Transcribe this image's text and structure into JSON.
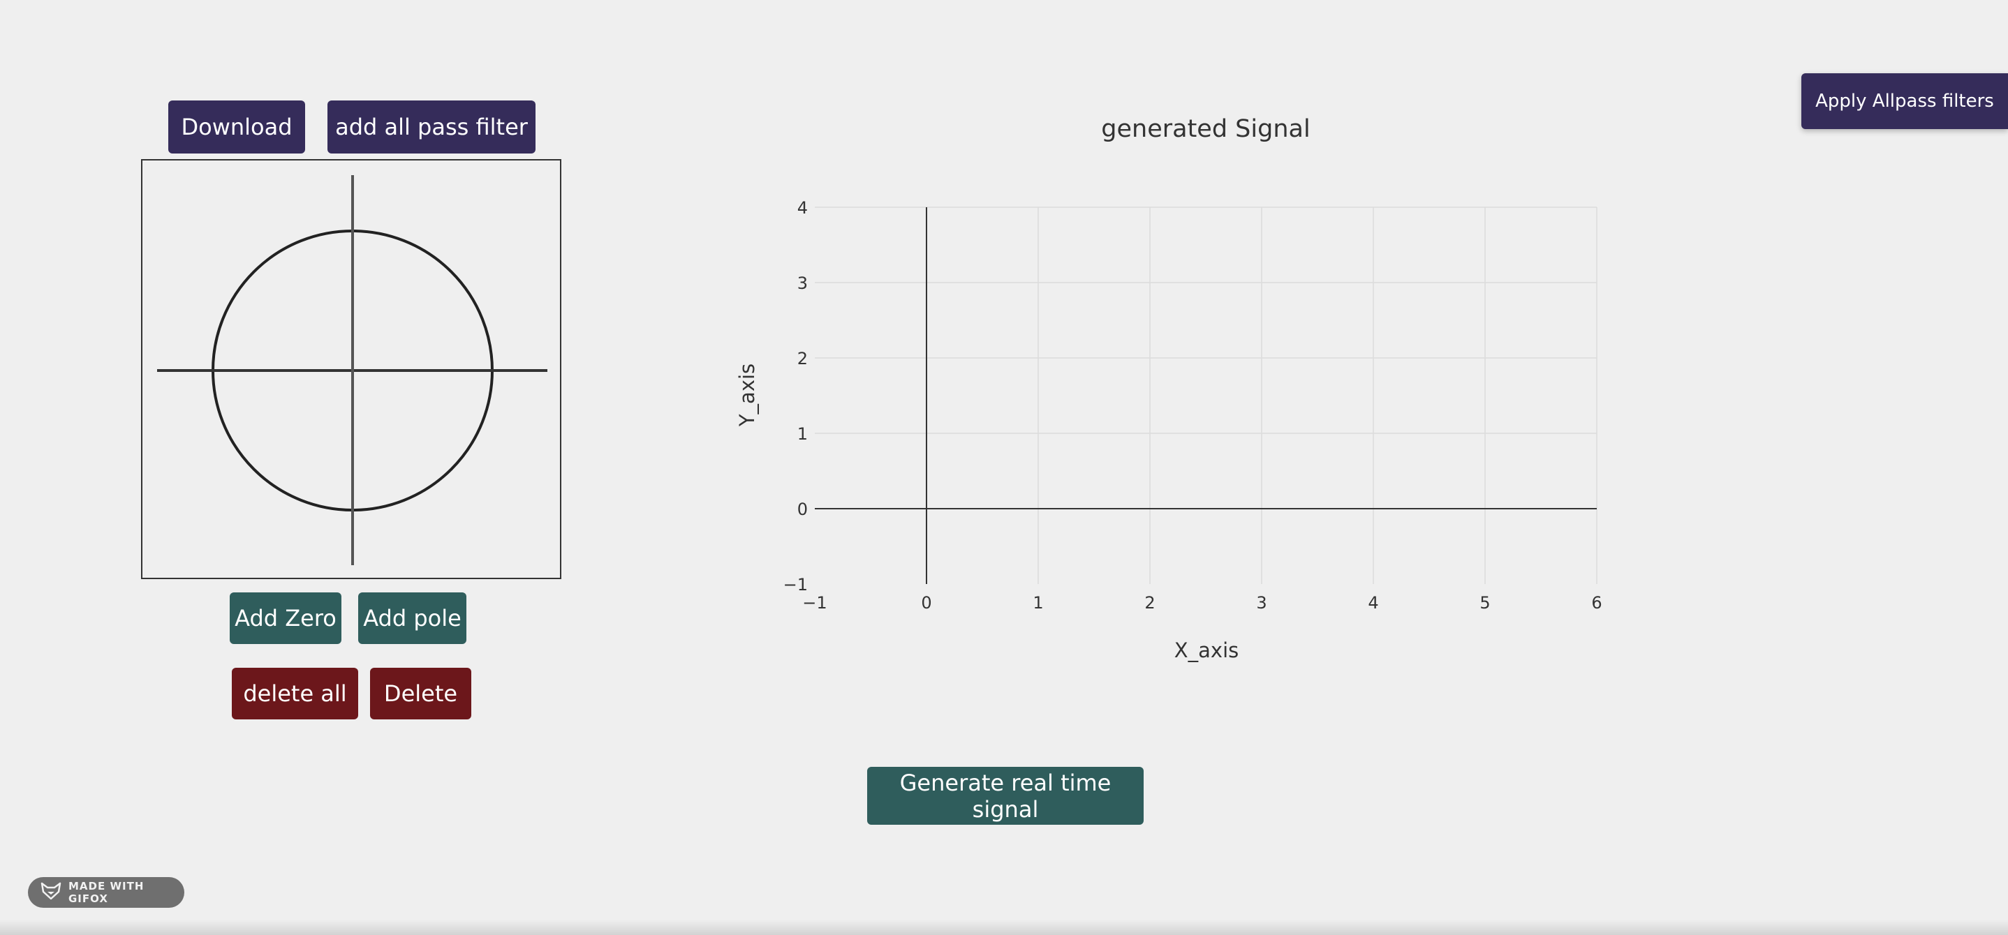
{
  "buttons": {
    "download": "Download",
    "add_all_pass": "add all pass filter",
    "apply_allpass": "Apply Allpass filters",
    "add_zero": "Add Zero",
    "add_pole": "Add pole",
    "delete_all": "delete all",
    "delete": "Delete",
    "generate": "Generate real time signal"
  },
  "colors": {
    "purple": "#352c5a",
    "teal": "#2f5d5c",
    "maroon": "#6c171b",
    "background": "#efefef"
  },
  "chart_data": {
    "type": "line",
    "title": "generated Signal",
    "xlabel": "X_axis",
    "ylabel": "Y_axis",
    "xlim": [
      -1,
      6
    ],
    "ylim": [
      -1,
      4
    ],
    "x_ticks": [
      "−1",
      "0",
      "1",
      "2",
      "3",
      "4",
      "5",
      "6"
    ],
    "y_ticks": [
      "−1",
      "0",
      "1",
      "2",
      "3",
      "4"
    ],
    "series": [],
    "grid": true
  },
  "badge": {
    "text": "MADE WITH GIFOX",
    "icon": "fox-icon"
  }
}
